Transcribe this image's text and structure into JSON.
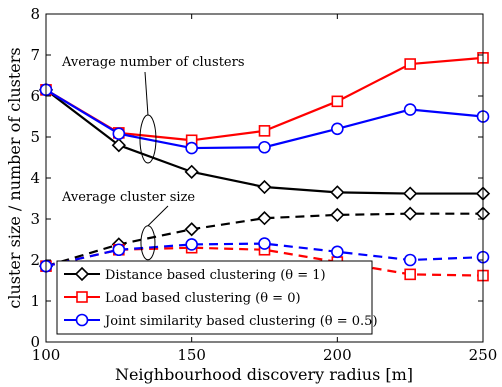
{
  "chart_data": {
    "type": "line",
    "xlabel": "Neighbourhood discovery radius [m]",
    "ylabel": "cluster size / number of clusters",
    "xlim": [
      100,
      250
    ],
    "ylim": [
      0,
      8
    ],
    "x_ticks": [
      "100",
      "150",
      "200",
      "250"
    ],
    "y_ticks": [
      "0",
      "1",
      "2",
      "3",
      "4",
      "5",
      "6",
      "7",
      "8"
    ],
    "x_tick_values": [
      100,
      150,
      200,
      250
    ],
    "y_tick_values": [
      0,
      1,
      2,
      3,
      4,
      5,
      6,
      7,
      8
    ],
    "grid": false,
    "legend_position": "bottom-left",
    "x": [
      100,
      125,
      150,
      175,
      200,
      225,
      250
    ],
    "series": [
      {
        "name": "Distance based clustering (θ = 1)",
        "group": "clusters",
        "style": "solid",
        "color": "#000000",
        "marker": "diamond",
        "values": [
          6.15,
          4.8,
          4.15,
          3.78,
          3.65,
          3.62,
          3.62
        ]
      },
      {
        "name": "Load based clustering (θ = 0)",
        "group": "clusters",
        "style": "solid",
        "color": "#ff0000",
        "marker": "square",
        "values": [
          6.15,
          5.1,
          4.92,
          5.15,
          5.87,
          6.78,
          6.93
        ]
      },
      {
        "name": "Joint similarity based clustering (θ = 0.5)",
        "group": "clusters",
        "style": "solid",
        "color": "#0000ff",
        "marker": "circle",
        "values": [
          6.15,
          5.08,
          4.73,
          4.75,
          5.2,
          5.67,
          5.5
        ]
      },
      {
        "name": "Distance based clustering (θ = 1)",
        "group": "size",
        "style": "dashed",
        "color": "#000000",
        "marker": "diamond",
        "values": [
          1.85,
          2.38,
          2.75,
          3.02,
          3.1,
          3.13,
          3.13
        ]
      },
      {
        "name": "Load based clustering (θ = 0)",
        "group": "size",
        "style": "dashed",
        "color": "#ff0000",
        "marker": "square",
        "values": [
          1.85,
          2.25,
          2.3,
          2.25,
          1.95,
          1.65,
          1.62
        ]
      },
      {
        "name": "Joint similarity based clustering (θ = 0.5)",
        "group": "size",
        "style": "dashed",
        "color": "#0000ff",
        "marker": "circle",
        "values": [
          1.85,
          2.25,
          2.38,
          2.4,
          2.2,
          2.0,
          2.07
        ]
      }
    ],
    "annotations": [
      {
        "text": "Average number of clusters"
      },
      {
        "text": "Average cluster size"
      }
    ],
    "legend": [
      "Distance based clustering (θ = 1)",
      "Load based clustering (θ = 0)",
      "Joint similarity based clustering (θ = 0.5)"
    ]
  }
}
